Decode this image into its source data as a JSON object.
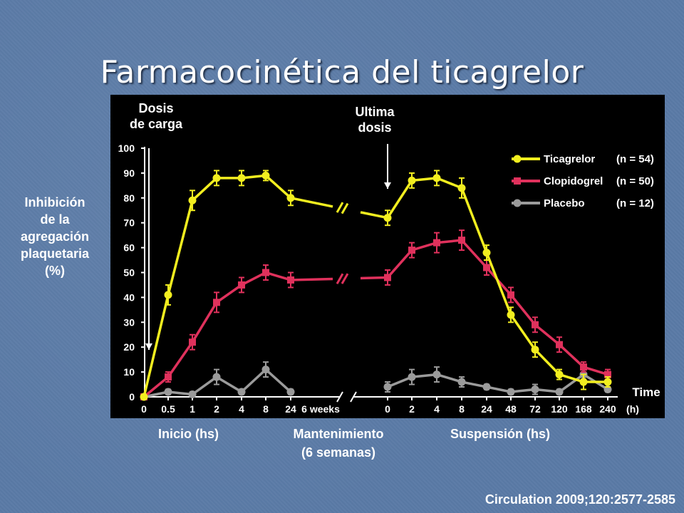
{
  "slide": {
    "title": "Farmacocinética del ticagrelor",
    "source": "Circulation 2009;120:2577-2585"
  },
  "annotations": {
    "loading_dose": [
      "Dosis",
      "de carga"
    ],
    "last_dose": [
      "Ultima",
      "dosis"
    ]
  },
  "ylabel_lines": [
    "Inhibición",
    "de la",
    "agregación",
    "plaquetaria",
    "(%)"
  ],
  "x_captions": {
    "start": "Inicio (hs)",
    "maintenance": [
      "Mantenimiento",
      "(6 semanas)"
    ],
    "withdrawal": "Suspensión (hs)"
  },
  "colors": {
    "ticagrelor": "#f2ee1f",
    "clopidogrel": "#e0315c",
    "placebo": "#9b9b9b",
    "slide_background": "#5a7aa6"
  },
  "chart_data": {
    "type": "line",
    "x": [
      "0",
      "0.5",
      "1",
      "2",
      "4",
      "8",
      "24",
      "6 weeks",
      "0",
      "2",
      "4",
      "8",
      "24",
      "48",
      "72",
      "120",
      "168",
      "240"
    ],
    "xlabel": "Time (h)",
    "x_axis_title": "Time",
    "x_axis_unit": "(h)",
    "ylim": [
      0,
      100
    ],
    "yticks": [
      0,
      10,
      20,
      30,
      40,
      50,
      60,
      70,
      80,
      90,
      100
    ],
    "grid": false,
    "legend_position": "top-right",
    "series": [
      {
        "name": "Ticagrelor",
        "n": "(n = 54)",
        "color": "#f2ee1f",
        "values": [
          0,
          41,
          79,
          88,
          88,
          89,
          80,
          null,
          72,
          87,
          88,
          84,
          58,
          33,
          19,
          9,
          6,
          6
        ],
        "errors": [
          0,
          4,
          4,
          3,
          3,
          2,
          3,
          null,
          3,
          3,
          3,
          4,
          3,
          3,
          3,
          2,
          3,
          2
        ]
      },
      {
        "name": "Clopidogrel",
        "n": "(n = 50)",
        "color": "#e0315c",
        "values": [
          0,
          8,
          22,
          38,
          45,
          50,
          47,
          null,
          48,
          59,
          62,
          63,
          52,
          41,
          29,
          21,
          12,
          9
        ],
        "errors": [
          0,
          2,
          3,
          4,
          3,
          3,
          3,
          null,
          3,
          3,
          4,
          4,
          3,
          3,
          3,
          3,
          2,
          2
        ]
      },
      {
        "name": "Placebo",
        "n": "(n = 12)",
        "color": "#9b9b9b",
        "values": [
          0,
          2,
          1,
          8,
          2,
          11,
          2,
          null,
          4,
          8,
          9,
          6,
          4,
          2,
          3,
          2,
          9,
          3
        ],
        "errors": [
          0,
          1,
          1,
          3,
          1,
          3,
          1,
          null,
          2,
          3,
          3,
          2,
          1,
          1,
          2,
          1,
          2,
          1
        ]
      }
    ],
    "break_markers": [
      {
        "series": "Ticagrelor",
        "value": 76
      },
      {
        "series": "Clopidogrel",
        "value": 47.5
      }
    ]
  }
}
